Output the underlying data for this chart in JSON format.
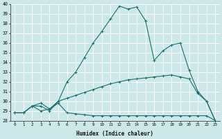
{
  "xlabel": "Humidex (Indice chaleur)",
  "background_color": "#cce8e8",
  "grid_color": "#b0d8d8",
  "line_color": "#1a6e6e",
  "xlim": [
    -0.5,
    23.5
  ],
  "ylim": [
    28,
    40
  ],
  "xticks": [
    0,
    1,
    2,
    3,
    4,
    5,
    6,
    7,
    8,
    9,
    10,
    11,
    12,
    13,
    14,
    15,
    16,
    17,
    18,
    19,
    20,
    21,
    22,
    23
  ],
  "yticks": [
    28,
    29,
    30,
    31,
    32,
    33,
    34,
    35,
    36,
    37,
    38,
    39,
    40
  ],
  "series": [
    {
      "x": [
        0,
        1,
        2,
        3,
        4,
        5,
        6,
        7,
        8,
        9,
        10,
        11,
        12,
        13,
        14,
        15,
        16,
        17,
        18,
        19,
        20,
        21,
        22,
        23
      ],
      "y": [
        28.8,
        28.8,
        29.5,
        29.5,
        29.0,
        30.0,
        32.0,
        33.0,
        34.5,
        36.0,
        37.2,
        38.5,
        39.8,
        39.5,
        39.7,
        38.3,
        34.2,
        35.2,
        35.8,
        36.0,
        33.2,
        31.0,
        30.0,
        28.0
      ]
    },
    {
      "x": [
        0,
        1,
        2,
        3,
        4,
        5,
        6,
        7,
        8,
        9,
        10,
        11,
        12,
        13,
        14,
        15,
        16,
        17,
        18,
        19,
        20,
        21,
        22,
        23
      ],
      "y": [
        28.8,
        28.8,
        29.5,
        29.8,
        29.2,
        29.8,
        28.8,
        28.7,
        28.6,
        28.5,
        28.5,
        28.5,
        28.5,
        28.5,
        28.5,
        28.5,
        28.5,
        28.5,
        28.5,
        28.5,
        28.5,
        28.5,
        28.5,
        28.0
      ]
    },
    {
      "x": [
        0,
        1,
        2,
        3,
        4,
        5,
        6,
        7,
        8,
        9,
        10,
        11,
        12,
        13,
        14,
        15,
        16,
        17,
        18,
        19,
        20,
        21,
        22,
        23
      ],
      "y": [
        28.8,
        28.8,
        29.5,
        29.0,
        29.2,
        30.0,
        30.3,
        30.6,
        30.9,
        31.2,
        31.5,
        31.8,
        32.0,
        32.2,
        32.3,
        32.4,
        32.5,
        32.6,
        32.7,
        32.5,
        32.3,
        30.8,
        30.0,
        28.0
      ]
    }
  ]
}
